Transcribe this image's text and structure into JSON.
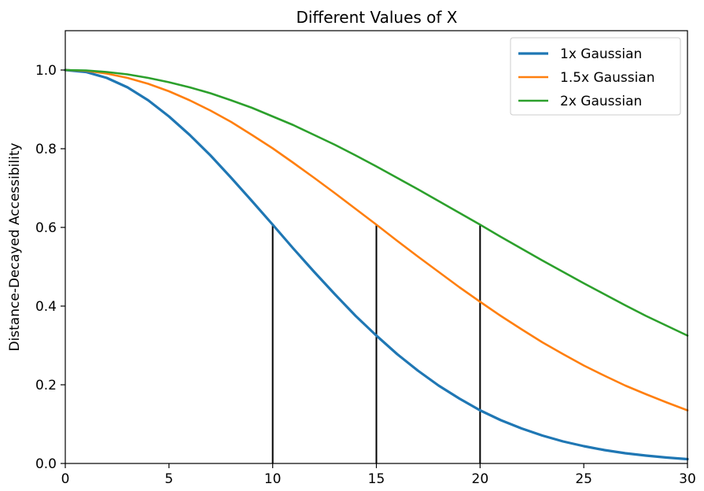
{
  "chart_data": {
    "type": "line",
    "title": "Different Values of X",
    "xlabel": "",
    "ylabel": "Distance-Decayed Accessibility",
    "xlim": [
      0,
      30
    ],
    "ylim": [
      0,
      1.1
    ],
    "x_ticks": [
      0,
      5,
      10,
      15,
      20,
      25,
      30
    ],
    "x_tick_labels": [
      "0",
      "5",
      "10",
      "15",
      "20",
      "25",
      "30"
    ],
    "y_ticks": [
      0.0,
      0.2,
      0.4,
      0.6,
      0.8,
      1.0
    ],
    "y_tick_labels": [
      "0.0",
      "0.2",
      "0.4",
      "0.6",
      "0.8",
      "1.0"
    ],
    "grid": false,
    "legend_position": "top-right",
    "x": [
      0,
      1,
      2,
      3,
      4,
      5,
      6,
      7,
      8,
      9,
      10,
      11,
      12,
      13,
      14,
      15,
      16,
      17,
      18,
      19,
      20,
      21,
      22,
      23,
      24,
      25,
      26,
      27,
      28,
      29,
      30
    ],
    "series": [
      {
        "name": "1x Gaussian",
        "color": "#1f77b4",
        "values": [
          1.0,
          0.995,
          0.98,
          0.956,
          0.923,
          0.882,
          0.835,
          0.783,
          0.726,
          0.667,
          0.607,
          0.546,
          0.487,
          0.43,
          0.375,
          0.325,
          0.278,
          0.236,
          0.198,
          0.165,
          0.135,
          0.11,
          0.089,
          0.071,
          0.056,
          0.044,
          0.034,
          0.026,
          0.02,
          0.015,
          0.011
        ]
      },
      {
        "name": "1.5x Gaussian",
        "color": "#ff7f0e",
        "values": [
          1.0,
          0.998,
          0.991,
          0.98,
          0.965,
          0.946,
          0.923,
          0.897,
          0.868,
          0.835,
          0.801,
          0.764,
          0.726,
          0.687,
          0.647,
          0.607,
          0.566,
          0.526,
          0.487,
          0.448,
          0.411,
          0.375,
          0.341,
          0.308,
          0.278,
          0.249,
          0.223,
          0.198,
          0.176,
          0.155,
          0.135
        ]
      },
      {
        "name": "2x Gaussian",
        "color": "#2ca02c",
        "values": [
          1.0,
          0.999,
          0.995,
          0.989,
          0.98,
          0.969,
          0.956,
          0.941,
          0.923,
          0.904,
          0.882,
          0.86,
          0.835,
          0.81,
          0.783,
          0.755,
          0.726,
          0.697,
          0.667,
          0.637,
          0.607,
          0.576,
          0.546,
          0.516,
          0.487,
          0.458,
          0.43,
          0.402,
          0.375,
          0.35,
          0.325
        ]
      }
    ],
    "vertical_lines": [
      {
        "x": 10,
        "y_top": 0.607,
        "color": "#000000"
      },
      {
        "x": 15,
        "y_top": 0.607,
        "color": "#000000"
      },
      {
        "x": 20,
        "y_top": 0.607,
        "color": "#000000"
      }
    ]
  }
}
